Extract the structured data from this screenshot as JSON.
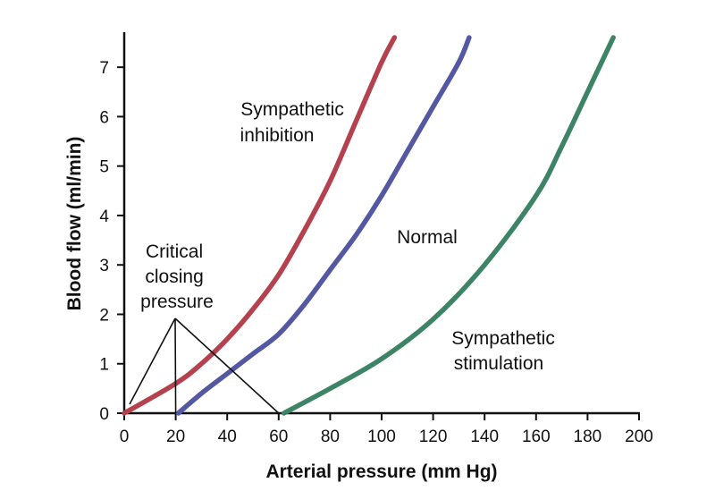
{
  "chart_data": {
    "type": "line",
    "title": "",
    "xlabel": "Arterial pressure (mm Hg)",
    "ylabel": "Blood flow (ml/min)",
    "xlim": [
      0,
      200
    ],
    "ylim": [
      0,
      7.6
    ],
    "xticks": [
      0,
      20,
      40,
      60,
      80,
      100,
      120,
      140,
      160,
      180,
      200
    ],
    "yticks": [
      0,
      1,
      2,
      3,
      4,
      5,
      6,
      7
    ],
    "grid": false,
    "series": [
      {
        "name": "Sympathetic inhibition",
        "color": "#b5404e",
        "points": [
          [
            0,
            0
          ],
          [
            20,
            0.6
          ],
          [
            30,
            1.0
          ],
          [
            40,
            1.5
          ],
          [
            50,
            2.1
          ],
          [
            60,
            2.8
          ],
          [
            70,
            3.7
          ],
          [
            80,
            4.7
          ],
          [
            90,
            5.9
          ],
          [
            100,
            7.1
          ],
          [
            105,
            7.6
          ]
        ]
      },
      {
        "name": "Normal",
        "color": "#5458a3",
        "points": [
          [
            21,
            0
          ],
          [
            30,
            0.4
          ],
          [
            40,
            0.8
          ],
          [
            50,
            1.2
          ],
          [
            60,
            1.6
          ],
          [
            70,
            2.2
          ],
          [
            80,
            2.9
          ],
          [
            90,
            3.6
          ],
          [
            100,
            4.4
          ],
          [
            110,
            5.3
          ],
          [
            120,
            6.2
          ],
          [
            130,
            7.1
          ],
          [
            134,
            7.6
          ]
        ]
      },
      {
        "name": "Sympathetic stimulation",
        "color": "#3d8466",
        "points": [
          [
            62,
            0
          ],
          [
            80,
            0.5
          ],
          [
            100,
            1.1
          ],
          [
            120,
            1.9
          ],
          [
            140,
            3.0
          ],
          [
            160,
            4.4
          ],
          [
            170,
            5.4
          ],
          [
            180,
            6.5
          ],
          [
            190,
            7.6
          ]
        ]
      }
    ],
    "annotations": [
      {
        "id": "sympathetic-inhibition",
        "lines": [
          "Sympathetic",
          "inhibition"
        ]
      },
      {
        "id": "normal",
        "lines": [
          "Normal"
        ]
      },
      {
        "id": "sympathetic-stimulation",
        "lines": [
          "Sympathetic",
          "stimulation"
        ]
      },
      {
        "id": "critical-closing-pressure",
        "lines": [
          "Critical",
          "closing",
          "pressure"
        ],
        "points_to_x": [
          0,
          20,
          60
        ]
      }
    ]
  }
}
